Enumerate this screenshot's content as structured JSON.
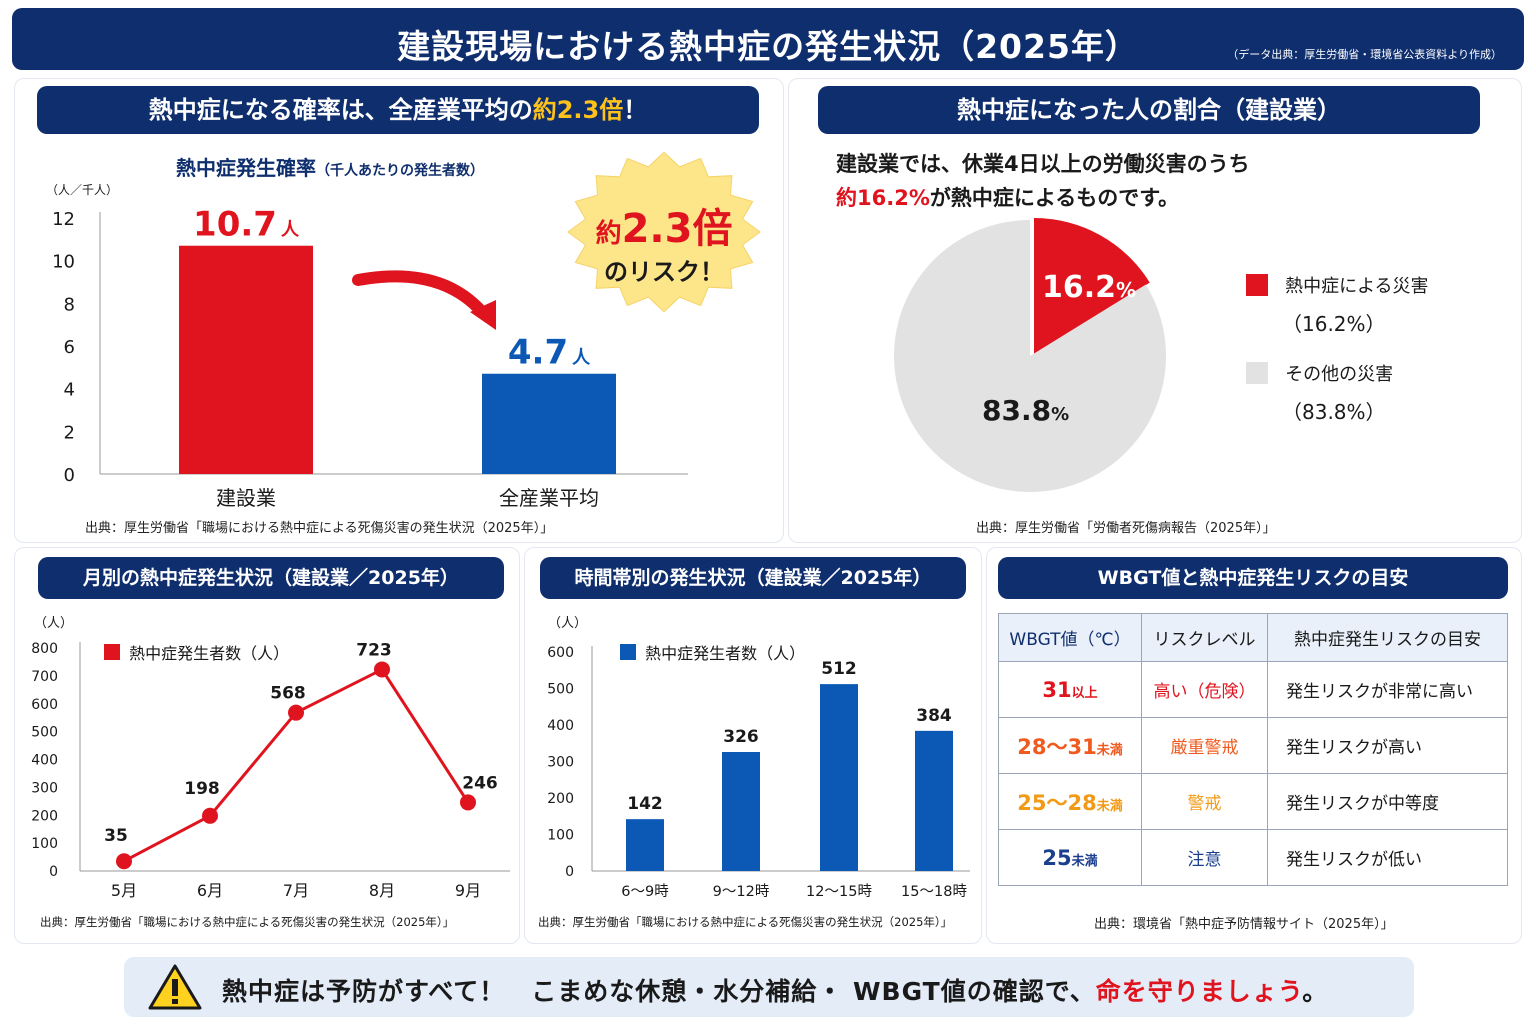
{
  "header": {
    "title": "建設現場における熱中症の発生状況（2025年）",
    "source": "（データ出典：厚生労働省・環境省公表資料より作成）"
  },
  "panel1": {
    "banner_prefix": "熱中症になる確率は、全産業平均の",
    "banner_highlight": "約2.3倍",
    "banner_suffix": "！",
    "chart_title": "熱中症発生確率",
    "chart_subtitle": "（千人あたりの発生者数）",
    "y_unit": "（人／千人）",
    "value_unit": "人",
    "burst_line1_prefix": "約",
    "burst_line1_value": "2.3倍",
    "burst_line2": "のリスク！",
    "source": "出典：厚生労働省「職場における熱中症による死傷災害の発生状況（2025年）」"
  },
  "panel2": {
    "banner": "熱中症になった人の割合（建設業）",
    "desc_line1": "建設業では、休業4日以上の労働災害のうち",
    "desc_highlight": "約16.2%",
    "desc_line2_suffix": "が熱中症によるものです。",
    "legend": [
      {
        "label": "熱中症による災害",
        "value": "（16.2%）",
        "color": "#e0141e"
      },
      {
        "label": "その他の災害",
        "value": "（83.8%）",
        "color": "#e2e2e2"
      }
    ],
    "slice_labels": [
      {
        "num": "16.2",
        "pct": "%"
      },
      {
        "num": "83.8",
        "pct": "%"
      }
    ],
    "source": "出典：厚生労働省「労働者死傷病報告（2025年）」"
  },
  "panel3": {
    "banner": "月別の熱中症発生状況（建設業／2025年）",
    "y_unit": "（人）",
    "legend": "熱中症発生者数（人）",
    "source": "出典：厚生労働省「職場における熱中症による死傷災害の発生状況（2025年）」"
  },
  "panel4": {
    "banner": "時間帯別の発生状況（建設業／2025年）",
    "y_unit": "（人）",
    "legend": "熱中症発生者数（人）",
    "source": "出典：厚生労働省「職場における熱中症による死傷災害の発生状況（2025年）」"
  },
  "panel5": {
    "banner": "WBGT値と熱中症発生リスクの目安",
    "headers": [
      "WBGT値（℃）",
      "リスクレベル",
      "熱中症発生リスクの目安"
    ],
    "rows": [
      {
        "value": "31",
        "unit": "以上",
        "level": "高い（危険）",
        "desc": "発生リスクが非常に高い",
        "color": "#e0141e"
      },
      {
        "value": "28～31",
        "unit": "未満",
        "level": "厳重警戒",
        "desc": "発生リスクが高い",
        "color": "#f05a1e"
      },
      {
        "value": "25～28",
        "unit": "未満",
        "level": "警戒",
        "desc": "発生リスクが中等度",
        "color": "#f29a16"
      },
      {
        "value": "25",
        "unit": "未満",
        "level": "注意",
        "desc": "発生リスクが低い",
        "color": "#1b3f8f"
      }
    ],
    "source": "出典：環境省「熱中症予防情報サイト（2025年）」"
  },
  "footer": {
    "message_prefix": "熱中症は予防がすべて！　こまめな休憩・水分補給・ WBGT値の確認で、",
    "message_highlight": "命を守りましょう",
    "message_suffix": "。"
  },
  "colors": {
    "navy": "#0f2e6e",
    "red": "#e0141e",
    "blue": "#0b58b5",
    "gray": "#e2e2e2"
  },
  "chart_data": [
    {
      "type": "bar",
      "title": "熱中症発生確率（千人あたりの発生者数）",
      "ylabel": "（人／千人）",
      "categories": [
        "建設業",
        "全産業平均"
      ],
      "values": [
        10.7,
        4.7
      ],
      "colors": [
        "#e0141e",
        "#0b58b5"
      ],
      "ylim": [
        0,
        12
      ],
      "yticks": [
        0,
        2,
        4,
        6,
        8,
        10,
        12
      ],
      "value_labels": [
        "10.7",
        "4.7"
      ]
    },
    {
      "type": "pie",
      "categories": [
        "熱中症による災害",
        "その他の災害"
      ],
      "values": [
        16.2,
        83.8
      ],
      "colors": [
        "#e0141e",
        "#e2e2e2"
      ]
    },
    {
      "type": "line",
      "ylabel": "（人）",
      "legend": "熱中症発生者数（人）",
      "categories": [
        "5月",
        "6月",
        "7月",
        "8月",
        "9月"
      ],
      "values": [
        35,
        198,
        568,
        723,
        246
      ],
      "ylim": [
        0,
        800
      ],
      "yticks": [
        0,
        100,
        200,
        300,
        400,
        500,
        600,
        700,
        800
      ],
      "color": "#e0141e"
    },
    {
      "type": "bar",
      "ylabel": "（人）",
      "legend": "熱中症発生者数（人）",
      "categories": [
        "6～9時",
        "9～12時",
        "12～15時",
        "15～18時"
      ],
      "values": [
        142,
        326,
        512,
        384
      ],
      "ylim": [
        0,
        600
      ],
      "yticks": [
        0,
        100,
        200,
        300,
        400,
        500,
        600
      ],
      "color": "#0b58b5"
    }
  ]
}
